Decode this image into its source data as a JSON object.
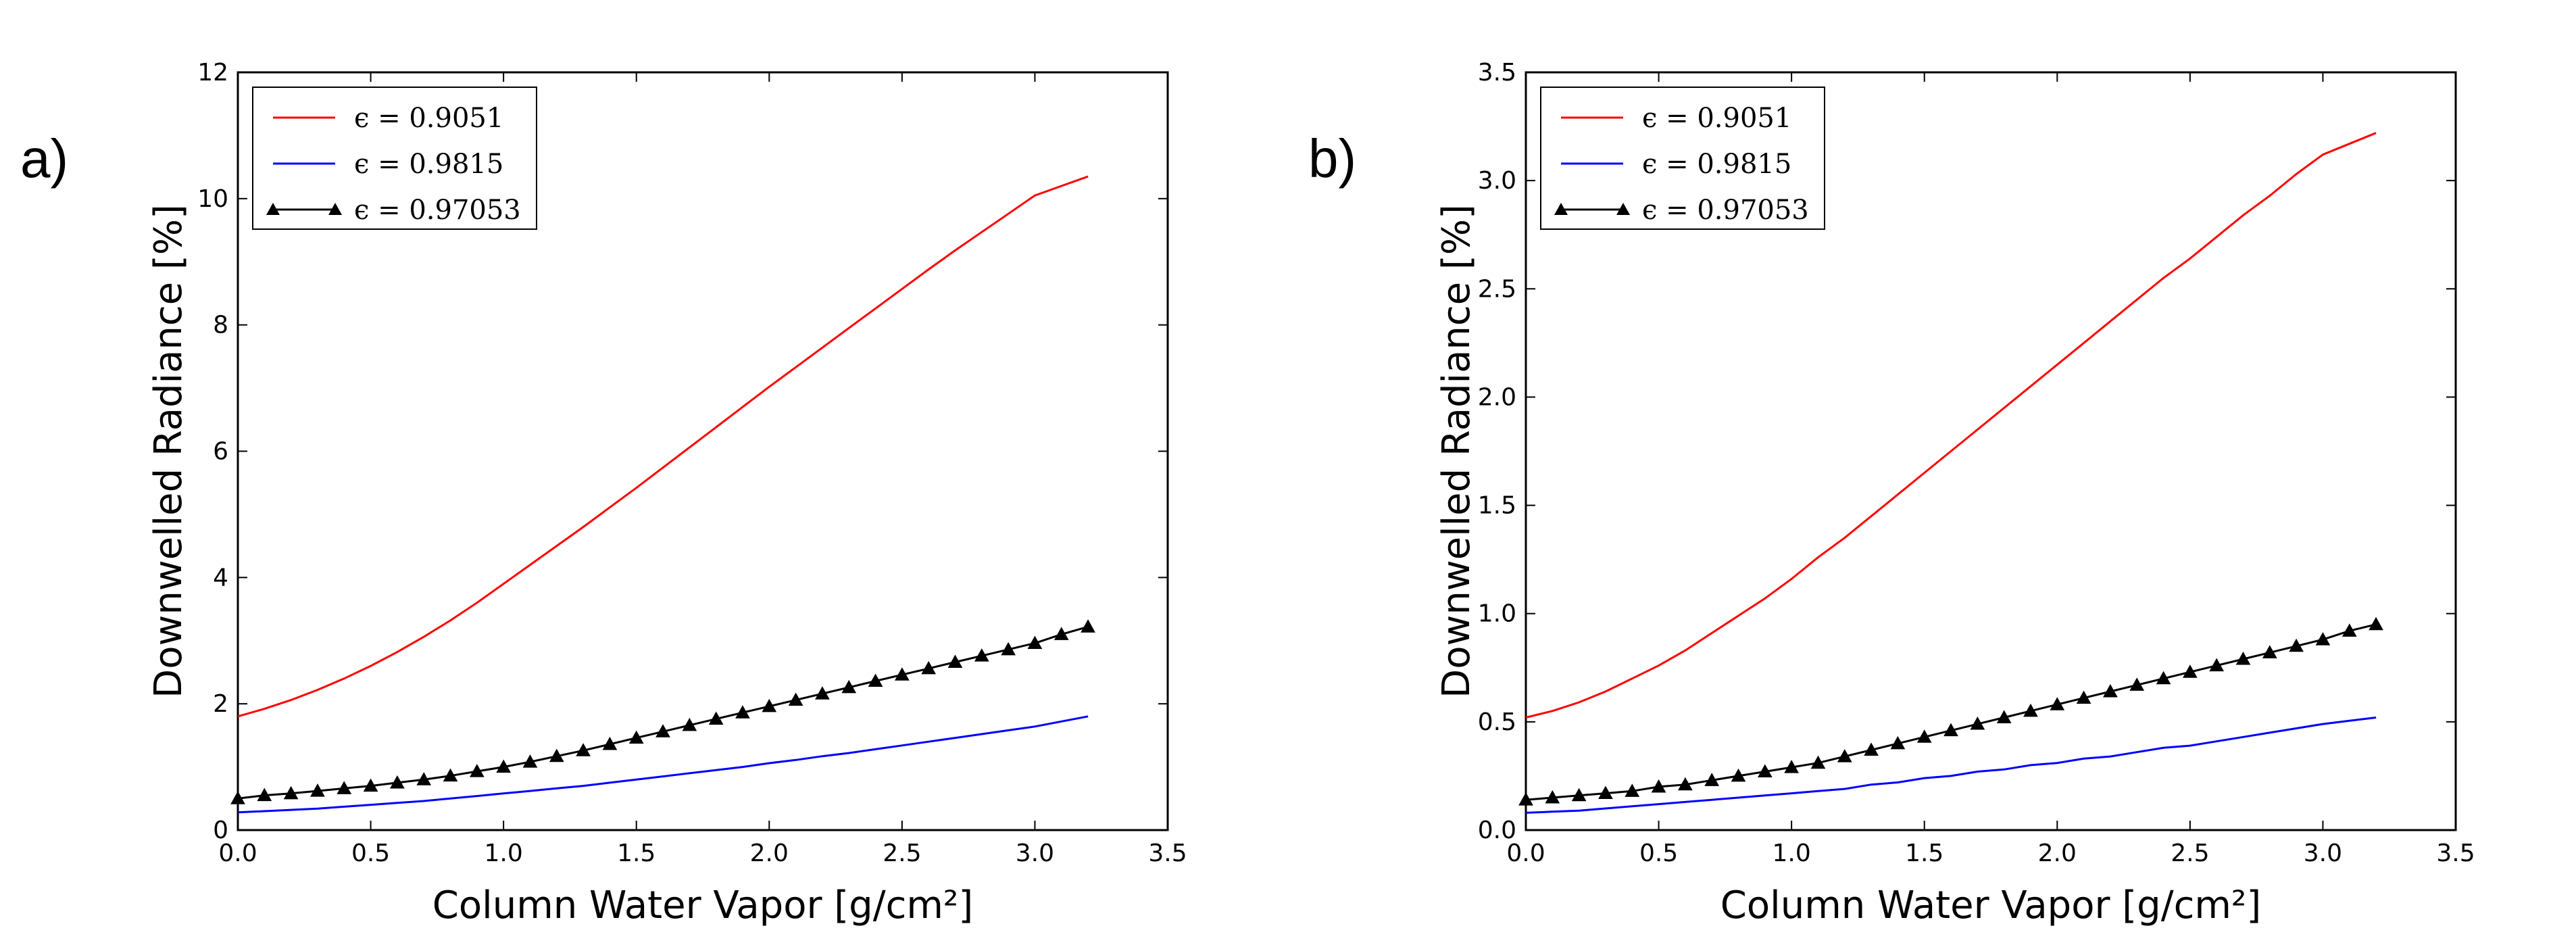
{
  "chart_data": [
    {
      "type": "line",
      "panel_label": "a)",
      "xlabel": "Column Water Vapor [g/cm²]",
      "ylabel": "Downwelled Radiance [%]",
      "xlim": [
        0,
        3.5
      ],
      "ylim": [
        0,
        12
      ],
      "xticks": [
        "0.0",
        "0.5",
        "1.0",
        "1.5",
        "2.0",
        "2.5",
        "3.0",
        "3.5"
      ],
      "yticks": [
        "0",
        "2",
        "4",
        "6",
        "8",
        "10",
        "12"
      ],
      "legend_position": "top-left",
      "grid": false,
      "x": [
        0.0,
        0.1,
        0.2,
        0.3,
        0.4,
        0.5,
        0.6,
        0.7,
        0.8,
        0.9,
        1.0,
        1.1,
        1.2,
        1.3,
        1.4,
        1.5,
        1.6,
        1.7,
        1.8,
        1.9,
        2.0,
        2.1,
        2.2,
        2.3,
        2.4,
        2.5,
        2.6,
        2.7,
        2.8,
        2.9,
        3.0,
        3.1,
        3.2
      ],
      "series": [
        {
          "name": "ϵ = 0.9051",
          "color": "#ff0000",
          "marker": "none",
          "values": [
            1.8,
            1.92,
            2.06,
            2.22,
            2.4,
            2.6,
            2.82,
            3.06,
            3.32,
            3.6,
            3.9,
            4.2,
            4.5,
            4.8,
            5.11,
            5.42,
            5.74,
            6.06,
            6.38,
            6.7,
            7.02,
            7.33,
            7.64,
            7.95,
            8.26,
            8.57,
            8.88,
            9.18,
            9.47,
            9.76,
            10.05,
            10.2,
            10.35
          ]
        },
        {
          "name": "ϵ = 0.9815",
          "color": "#0000ff",
          "marker": "none",
          "values": [
            0.28,
            0.3,
            0.32,
            0.34,
            0.37,
            0.4,
            0.43,
            0.46,
            0.5,
            0.54,
            0.58,
            0.62,
            0.66,
            0.7,
            0.75,
            0.8,
            0.85,
            0.9,
            0.95,
            1.0,
            1.06,
            1.11,
            1.17,
            1.22,
            1.28,
            1.34,
            1.4,
            1.46,
            1.52,
            1.58,
            1.64,
            1.72,
            1.8
          ]
        },
        {
          "name": "ϵ = 0.97053",
          "color": "#000000",
          "marker": "triangle",
          "values": [
            0.5,
            0.55,
            0.58,
            0.62,
            0.66,
            0.7,
            0.75,
            0.8,
            0.86,
            0.93,
            1.0,
            1.08,
            1.17,
            1.26,
            1.36,
            1.46,
            1.56,
            1.66,
            1.76,
            1.86,
            1.96,
            2.06,
            2.16,
            2.26,
            2.36,
            2.46,
            2.56,
            2.66,
            2.76,
            2.86,
            2.96,
            3.1,
            3.22
          ]
        }
      ]
    },
    {
      "type": "line",
      "panel_label": "b)",
      "xlabel": "Column Water Vapor [g/cm²]",
      "ylabel": "Downwelled Radiance [%]",
      "xlim": [
        0,
        3.5
      ],
      "ylim": [
        0,
        3.5
      ],
      "xticks": [
        "0.0",
        "0.5",
        "1.0",
        "1.5",
        "2.0",
        "2.5",
        "3.0",
        "3.5"
      ],
      "yticks": [
        "0.0",
        "0.5",
        "1.0",
        "1.5",
        "2.0",
        "2.5",
        "3.0",
        "3.5"
      ],
      "legend_position": "top-left",
      "grid": false,
      "x": [
        0.0,
        0.1,
        0.2,
        0.3,
        0.4,
        0.5,
        0.6,
        0.7,
        0.8,
        0.9,
        1.0,
        1.1,
        1.2,
        1.3,
        1.4,
        1.5,
        1.6,
        1.7,
        1.8,
        1.9,
        2.0,
        2.1,
        2.2,
        2.3,
        2.4,
        2.5,
        2.6,
        2.7,
        2.8,
        2.9,
        3.0,
        3.1,
        3.2
      ],
      "series": [
        {
          "name": "ϵ = 0.9051",
          "color": "#ff0000",
          "marker": "none",
          "values": [
            0.52,
            0.55,
            0.59,
            0.64,
            0.7,
            0.76,
            0.83,
            0.91,
            0.99,
            1.07,
            1.16,
            1.26,
            1.35,
            1.45,
            1.55,
            1.65,
            1.75,
            1.85,
            1.95,
            2.05,
            2.15,
            2.25,
            2.35,
            2.45,
            2.55,
            2.64,
            2.74,
            2.84,
            2.93,
            3.03,
            3.12,
            3.17,
            3.22
          ]
        },
        {
          "name": "ϵ = 0.9815",
          "color": "#0000ff",
          "marker": "none",
          "values": [
            0.08,
            0.085,
            0.09,
            0.1,
            0.11,
            0.12,
            0.13,
            0.14,
            0.15,
            0.16,
            0.17,
            0.18,
            0.19,
            0.21,
            0.22,
            0.24,
            0.25,
            0.27,
            0.28,
            0.3,
            0.31,
            0.33,
            0.34,
            0.36,
            0.38,
            0.39,
            0.41,
            0.43,
            0.45,
            0.47,
            0.49,
            0.505,
            0.52
          ]
        },
        {
          "name": "ϵ = 0.97053",
          "color": "#000000",
          "marker": "triangle",
          "values": [
            0.14,
            0.15,
            0.16,
            0.17,
            0.18,
            0.2,
            0.21,
            0.23,
            0.25,
            0.27,
            0.29,
            0.31,
            0.34,
            0.37,
            0.4,
            0.43,
            0.46,
            0.49,
            0.52,
            0.55,
            0.58,
            0.61,
            0.64,
            0.67,
            0.7,
            0.73,
            0.76,
            0.79,
            0.82,
            0.85,
            0.88,
            0.92,
            0.95
          ]
        }
      ]
    }
  ]
}
